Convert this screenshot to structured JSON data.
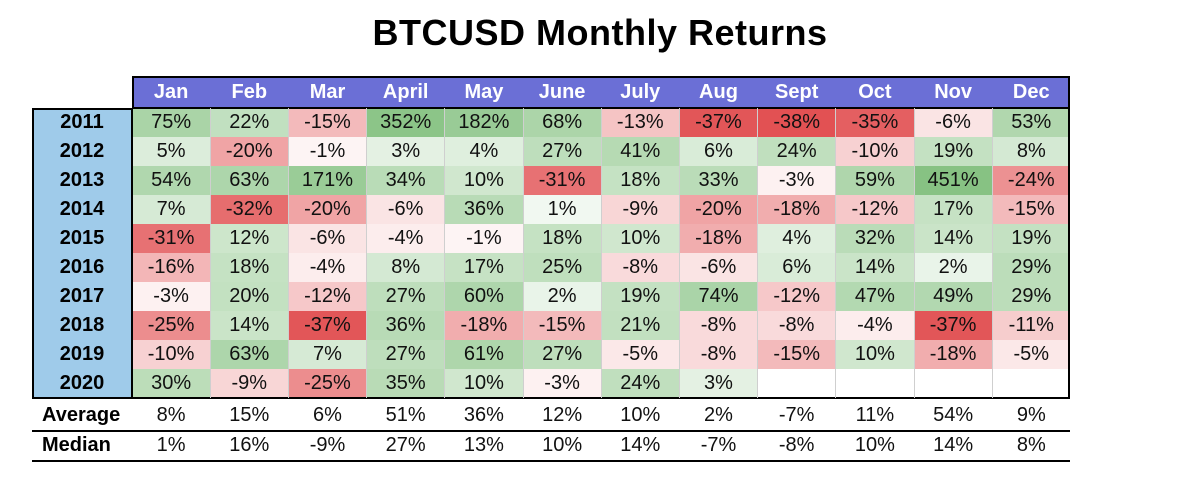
{
  "chart_data": {
    "type": "heatmap",
    "title": "BTCUSD Monthly Returns",
    "months": [
      "Jan",
      "Feb",
      "Mar",
      "April",
      "May",
      "June",
      "July",
      "Aug",
      "Sept",
      "Oct",
      "Nov",
      "Dec"
    ],
    "years": [
      "2011",
      "2012",
      "2013",
      "2014",
      "2015",
      "2016",
      "2017",
      "2018",
      "2019",
      "2020"
    ],
    "values": [
      [
        "75%",
        "22%",
        "-15%",
        "352%",
        "182%",
        "68%",
        "-13%",
        "-37%",
        "-38%",
        "-35%",
        "-6%",
        "53%"
      ],
      [
        "5%",
        "-20%",
        "-1%",
        "3%",
        "4%",
        "27%",
        "41%",
        "6%",
        "24%",
        "-10%",
        "19%",
        "8%"
      ],
      [
        "54%",
        "63%",
        "171%",
        "34%",
        "10%",
        "-31%",
        "18%",
        "33%",
        "-3%",
        "59%",
        "451%",
        "-24%"
      ],
      [
        "7%",
        "-32%",
        "-20%",
        "-6%",
        "36%",
        "1%",
        "-9%",
        "-20%",
        "-18%",
        "-12%",
        "17%",
        "-15%"
      ],
      [
        "-31%",
        "12%",
        "-6%",
        "-4%",
        "-1%",
        "18%",
        "10%",
        "-18%",
        "4%",
        "32%",
        "14%",
        "19%"
      ],
      [
        "-16%",
        "18%",
        "-4%",
        "8%",
        "17%",
        "25%",
        "-8%",
        "-6%",
        "6%",
        "14%",
        "2%",
        "29%"
      ],
      [
        "-3%",
        "20%",
        "-12%",
        "27%",
        "60%",
        "2%",
        "19%",
        "74%",
        "-12%",
        "47%",
        "49%",
        "29%"
      ],
      [
        "-25%",
        "14%",
        "-37%",
        "36%",
        "-18%",
        "-15%",
        "21%",
        "-8%",
        "-8%",
        "-4%",
        "-37%",
        "-11%"
      ],
      [
        "-10%",
        "63%",
        "7%",
        "27%",
        "61%",
        "27%",
        "-5%",
        "-8%",
        "-15%",
        "10%",
        "-18%",
        "-5%"
      ],
      [
        "30%",
        "-9%",
        "-25%",
        "35%",
        "10%",
        "-3%",
        "24%",
        "3%",
        "",
        "",
        "",
        ""
      ]
    ],
    "summary": [
      {
        "label": "Average",
        "values": [
          "8%",
          "15%",
          "6%",
          "51%",
          "36%",
          "12%",
          "10%",
          "2%",
          "-7%",
          "11%",
          "54%",
          "9%"
        ]
      },
      {
        "label": "Median",
        "values": [
          "1%",
          "16%",
          "-9%",
          "27%",
          "13%",
          "10%",
          "14%",
          "-7%",
          "-8%",
          "10%",
          "14%",
          "8%"
        ]
      }
    ]
  },
  "colors": {
    "header_bg": "#6b6fd6",
    "year_col_bg": "#9fcbea",
    "positive": "#5fae5a",
    "negative": "#e0484a",
    "border": "#000000"
  }
}
